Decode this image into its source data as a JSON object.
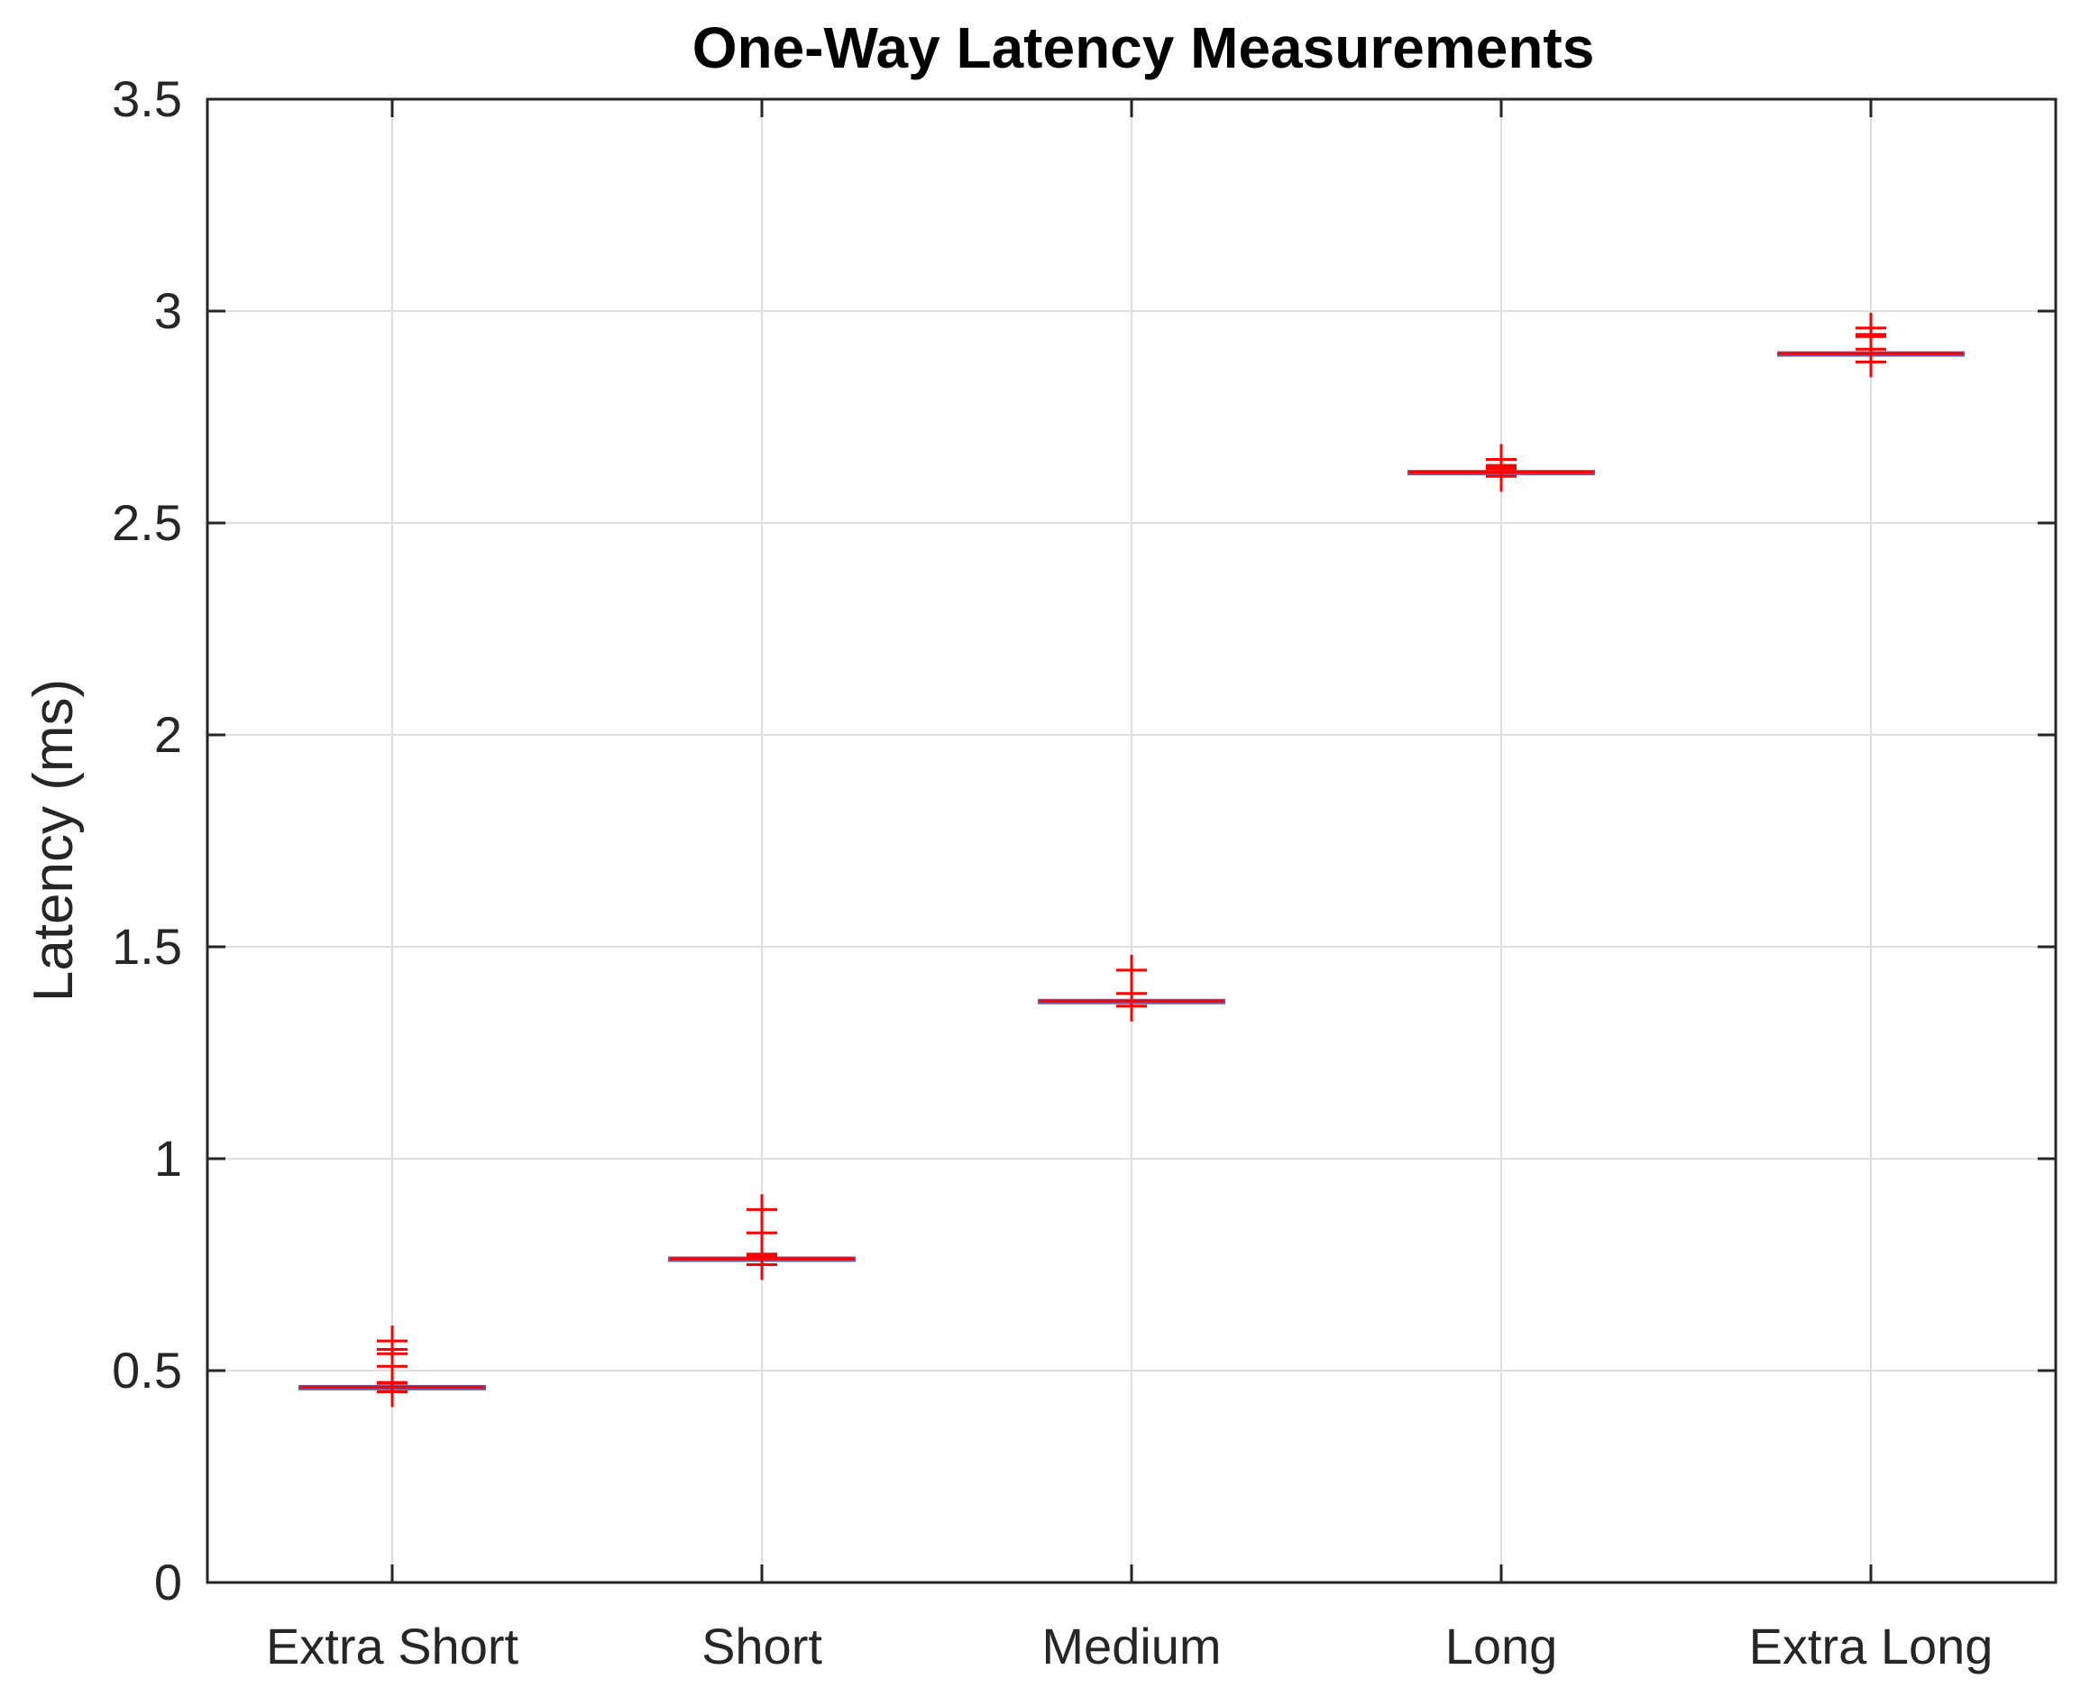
{
  "chart_data": {
    "type": "box",
    "title": "One-Way Latency Measurements",
    "xlabel": "",
    "ylabel": "Latency (ms)",
    "ylim": [
      0,
      3.5
    ],
    "yticks": [
      "0",
      "0.5",
      "1",
      "1.5",
      "2",
      "2.5",
      "3",
      "3.5"
    ],
    "ytick_values": [
      0,
      0.5,
      1,
      1.5,
      2,
      2.5,
      3,
      3.5
    ],
    "grid": true,
    "categories": [
      "Extra Short",
      "Short",
      "Medium",
      "Long",
      "Extra Long"
    ],
    "boxes": [
      {
        "median": 0.461,
        "q1": 0.46,
        "q3": 0.463,
        "whisker_low": 0.459,
        "whisker_high": 0.465,
        "outliers": [
          0.45,
          0.47,
          0.472,
          0.51,
          0.54,
          0.55,
          0.57
        ]
      },
      {
        "median": 0.764,
        "q1": 0.763,
        "q3": 0.766,
        "whisker_low": 0.762,
        "whisker_high": 0.767,
        "outliers": [
          0.75,
          0.77,
          0.775,
          0.825,
          0.88
        ]
      },
      {
        "median": 1.372,
        "q1": 1.371,
        "q3": 1.374,
        "whisker_low": 1.37,
        "whisker_high": 1.375,
        "outliers": [
          1.36,
          1.39,
          1.445
        ]
      },
      {
        "median": 2.62,
        "q1": 2.619,
        "q3": 2.622,
        "whisker_low": 2.618,
        "whisker_high": 2.623,
        "outliers": [
          2.61,
          2.628,
          2.632,
          2.636,
          2.65
        ]
      },
      {
        "median": 2.9,
        "q1": 2.899,
        "q3": 2.902,
        "whisker_low": 2.898,
        "whisker_high": 2.903,
        "outliers": [
          2.88,
          2.91,
          2.94,
          2.945,
          2.96
        ]
      }
    ],
    "colors": {
      "median": "#ff0000",
      "box": "#6a5fa0",
      "outlier": "#ff0000",
      "grid": "#dedede",
      "axis": "#262626"
    }
  }
}
